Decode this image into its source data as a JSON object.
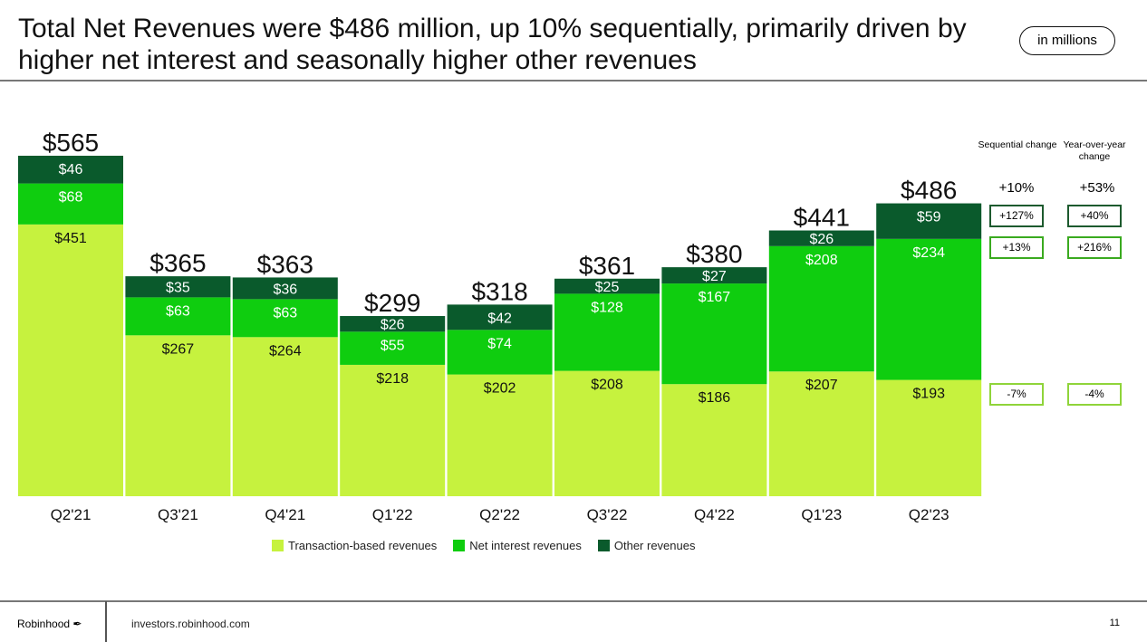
{
  "header": {
    "title": "Total Net Revenues were $486 million, up 10% sequentially, primarily driven by higher net interest and seasonally higher other revenues",
    "unit_badge": "in millions"
  },
  "chart_data": {
    "type": "bar",
    "stacked": true,
    "categories": [
      "Q2'21",
      "Q3'21",
      "Q4'21",
      "Q1'22",
      "Q2'22",
      "Q3'22",
      "Q4'22",
      "Q1'23",
      "Q2'23"
    ],
    "series": [
      {
        "name": "Transaction-based revenues",
        "color": "#c6f23e",
        "values": [
          451,
          267,
          264,
          218,
          202,
          208,
          186,
          207,
          193
        ]
      },
      {
        "name": "Net interest revenues",
        "color": "#0fcd0f",
        "values": [
          68,
          63,
          63,
          55,
          74,
          128,
          167,
          208,
          234
        ]
      },
      {
        "name": "Other revenues",
        "color": "#0a5a2c",
        "values": [
          46,
          35,
          36,
          26,
          42,
          25,
          27,
          26,
          59
        ]
      }
    ],
    "totals": [
      565,
      365,
      363,
      299,
      318,
      361,
      380,
      441,
      486
    ],
    "value_prefix": "$",
    "ylim": [
      0,
      565
    ],
    "grid": false,
    "legend": "bottom"
  },
  "changes": {
    "sequential_header": "Sequential change",
    "yoy_header": "Year-over-year change",
    "total": {
      "sequential": "+10%",
      "yoy": "+53%"
    },
    "rows": [
      {
        "series": "Other revenues",
        "sequential": "+127%",
        "yoy": "+40%",
        "border": "#1d5a2e"
      },
      {
        "series": "Net interest revenues",
        "sequential": "+13%",
        "yoy": "+216%",
        "border": "#3aaa1f"
      },
      {
        "series": "Transaction-based revenues",
        "sequential": "-7%",
        "yoy": "-4%",
        "border": "#8fd43a"
      }
    ]
  },
  "footer": {
    "brand": "Robinhood",
    "url": "investors.robinhood.com",
    "page": "11"
  }
}
